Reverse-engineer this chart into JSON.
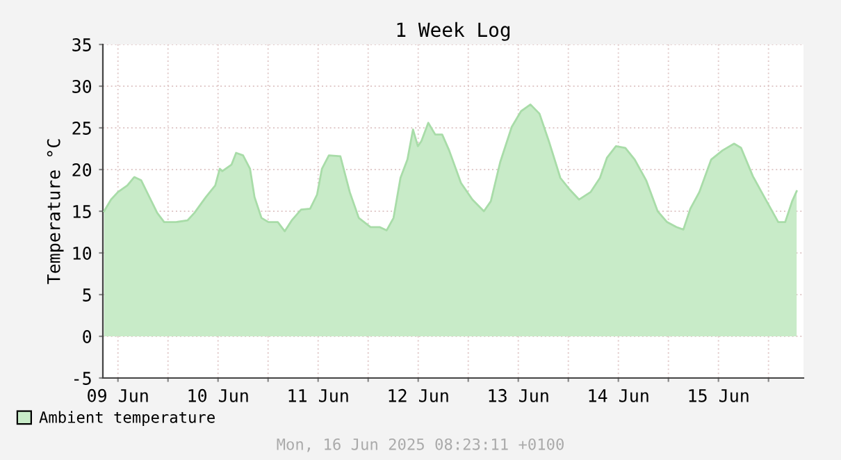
{
  "chart_data": {
    "type": "area",
    "title": "1 Week Log",
    "ylabel": "Temperature °C",
    "x": [
      "2025-06-09T08:40",
      "2025-06-09T10:20",
      "2025-06-09T12:00",
      "2025-06-09T14:15",
      "2025-06-09T15:55",
      "2025-06-09T17:35",
      "2025-06-09T19:15",
      "2025-06-09T21:25",
      "2025-06-09T23:05",
      "2025-06-10T01:55",
      "2025-06-10T04:40",
      "2025-06-10T06:20",
      "2025-06-10T09:05",
      "2025-06-10T11:20",
      "2025-06-10T12:25",
      "2025-06-10T13:00",
      "2025-06-10T15:15",
      "2025-06-10T16:20",
      "2025-06-10T18:00",
      "2025-06-10T19:40",
      "2025-06-10T20:45",
      "2025-06-10T22:25",
      "2025-06-11T00:05",
      "2025-06-11T02:20",
      "2025-06-11T04:00",
      "2025-06-11T05:40",
      "2025-06-11T07:55",
      "2025-06-11T10:05",
      "2025-06-11T11:45",
      "2025-06-11T12:55",
      "2025-06-11T14:35",
      "2025-06-11T17:20",
      "2025-06-11T19:35",
      "2025-06-11T21:45",
      "2025-06-12T00:35",
      "2025-06-12T02:45",
      "2025-06-12T04:25",
      "2025-06-12T06:05",
      "2025-06-12T07:45",
      "2025-06-12T09:25",
      "2025-06-12T10:45",
      "2025-06-12T11:55",
      "2025-06-12T12:45",
      "2025-06-12T14:25",
      "2025-06-12T16:05",
      "2025-06-12T17:45",
      "2025-06-12T19:25",
      "2025-06-12T22:15",
      "2025-06-13T01:00",
      "2025-06-13T03:45",
      "2025-06-13T05:25",
      "2025-06-13T07:40",
      "2025-06-13T10:25",
      "2025-06-13T12:40",
      "2025-06-13T14:55",
      "2025-06-13T17:05",
      "2025-06-13T19:20",
      "2025-06-13T22:05",
      "2025-06-14T00:20",
      "2025-06-14T02:35",
      "2025-06-14T05:20",
      "2025-06-14T07:35",
      "2025-06-14T09:15",
      "2025-06-14T11:25",
      "2025-06-14T13:40",
      "2025-06-14T15:55",
      "2025-06-14T18:40",
      "2025-06-14T21:25",
      "2025-06-14T23:40",
      "2025-06-15T01:55",
      "2025-06-15T03:35",
      "2025-06-15T05:15",
      "2025-06-15T07:25",
      "2025-06-15T10:15",
      "2025-06-15T13:00",
      "2025-06-15T15:45",
      "2025-06-15T17:25",
      "2025-06-15T20:15",
      "2025-06-15T23:00",
      "2025-06-16T02:20",
      "2025-06-16T04:00",
      "2025-06-16T05:40",
      "2025-06-16T06:45"
    ],
    "series": [
      {
        "name": "Ambient temperature",
        "color": "#c8ebc8",
        "values": [
          15.0,
          16.4,
          17.3,
          18.1,
          19.1,
          18.7,
          17.0,
          14.8,
          13.7,
          13.7,
          13.9,
          14.8,
          16.7,
          18.1,
          20.1,
          19.8,
          20.6,
          22.0,
          21.7,
          20.1,
          16.7,
          14.2,
          13.7,
          13.7,
          12.6,
          13.9,
          15.2,
          15.3,
          17.0,
          20.1,
          21.7,
          21.6,
          17.3,
          14.2,
          13.1,
          13.1,
          12.7,
          14.2,
          19.0,
          21.2,
          24.8,
          22.8,
          23.4,
          25.6,
          24.2,
          24.2,
          22.3,
          18.4,
          16.4,
          15.0,
          16.2,
          20.9,
          25.1,
          27.0,
          27.8,
          26.7,
          23.4,
          19.0,
          17.6,
          16.4,
          17.3,
          19.0,
          21.4,
          22.8,
          22.6,
          21.2,
          18.7,
          15.0,
          13.7,
          13.1,
          12.8,
          15.3,
          17.3,
          21.2,
          22.3,
          23.1,
          22.6,
          19.2,
          16.7,
          13.7,
          13.7,
          16.2,
          17.4
        ]
      }
    ],
    "xlim": [
      "2025-06-09T08:23",
      "2025-06-16T08:23"
    ],
    "xticks": [
      {
        "value": "2025-06-09T12:00",
        "label": "09 Jun"
      },
      {
        "value": "2025-06-10T00:00",
        "label": null
      },
      {
        "value": "2025-06-10T12:00",
        "label": "10 Jun"
      },
      {
        "value": "2025-06-11T00:00",
        "label": null
      },
      {
        "value": "2025-06-11T12:00",
        "label": "11 Jun"
      },
      {
        "value": "2025-06-12T00:00",
        "label": null
      },
      {
        "value": "2025-06-12T12:00",
        "label": "12 Jun"
      },
      {
        "value": "2025-06-13T00:00",
        "label": null
      },
      {
        "value": "2025-06-13T12:00",
        "label": "13 Jun"
      },
      {
        "value": "2025-06-14T00:00",
        "label": null
      },
      {
        "value": "2025-06-14T12:00",
        "label": "14 Jun"
      },
      {
        "value": "2025-06-15T00:00",
        "label": null
      },
      {
        "value": "2025-06-15T12:00",
        "label": "15 Jun"
      },
      {
        "value": "2025-06-16T00:00",
        "label": null
      }
    ],
    "ylim": [
      -5,
      35
    ],
    "yticks": [
      -5,
      0,
      5,
      10,
      15,
      20,
      25,
      30,
      35
    ],
    "grid": true,
    "legend": "bottom left",
    "annotations": [
      "Mon, 16 Jun 2025 08:23:11 +0100"
    ]
  }
}
